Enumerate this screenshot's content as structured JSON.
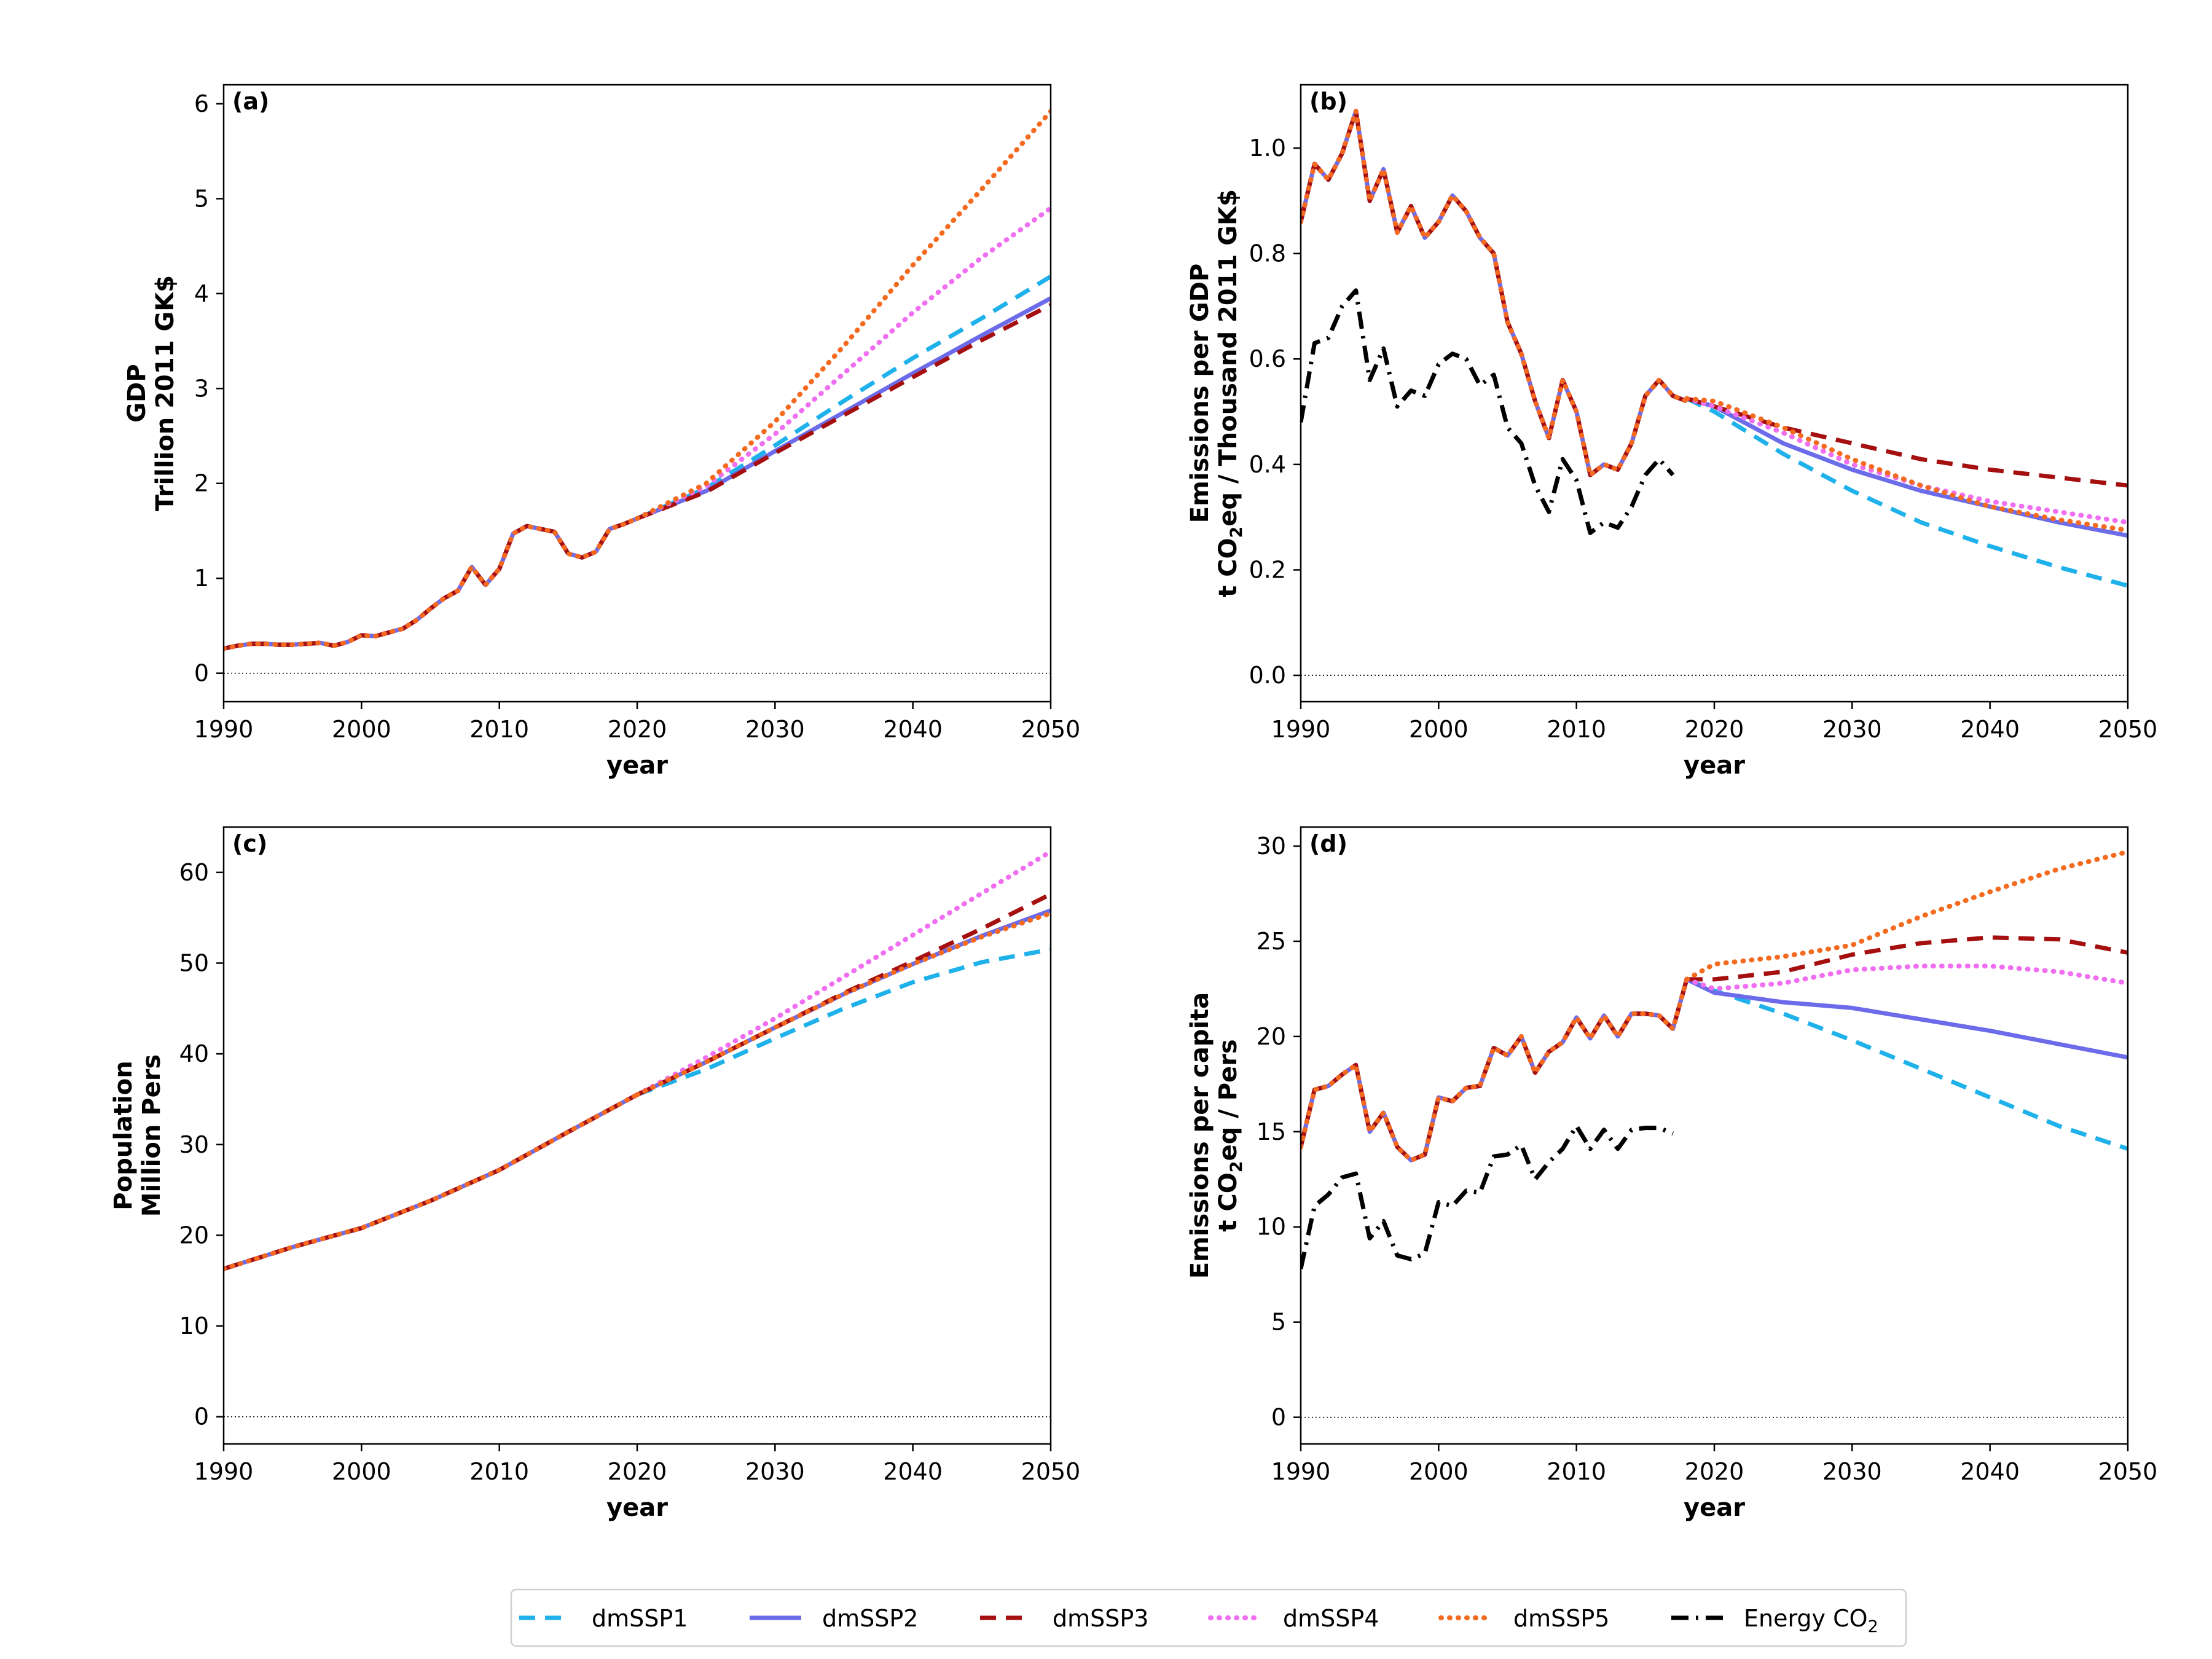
{
  "colors": {
    "dmSSP1": "#1fb1ea",
    "dmSSP2": "#6c6bea",
    "dmSSP3": "#a50f0f",
    "dmSSP4": "#f06ef0",
    "dmSSP5": "#f46a1f",
    "energy": "#000000"
  },
  "legend": {
    "items": [
      {
        "key": "dmSSP1",
        "label": "dmSSP1",
        "style": "dashed"
      },
      {
        "key": "dmSSP2",
        "label": "dmSSP2",
        "style": "solid"
      },
      {
        "key": "dmSSP3",
        "label": "dmSSP3",
        "style": "dashed"
      },
      {
        "key": "dmSSP4",
        "label": "dmSSP4",
        "style": "dotted"
      },
      {
        "key": "dmSSP5",
        "label": "dmSSP5",
        "style": "dotted"
      },
      {
        "key": "energy",
        "label": "Energy CO",
        "sub": "2",
        "style": "dashdot"
      }
    ],
    "placement": "bottom-center"
  },
  "chart_data": [
    {
      "panel_label": "(a)",
      "type": "line",
      "ylabel_lines": [
        {
          "text": "GDP"
        },
        {
          "text": "Trillion 2011 GK$"
        }
      ],
      "xlabel": "year",
      "xlim": [
        1990,
        2050
      ],
      "ylim": [
        -0.3,
        6.2
      ],
      "xticks": [
        1990,
        2000,
        2010,
        2020,
        2030,
        2040,
        2050
      ],
      "yticks": [
        0,
        1,
        2,
        3,
        4,
        5,
        6
      ],
      "zero_line": true,
      "historical": {
        "x": [
          1990,
          1991,
          1992,
          1993,
          1994,
          1995,
          1996,
          1997,
          1998,
          1999,
          2000,
          2001,
          2002,
          2003,
          2004,
          2005,
          2006,
          2007,
          2008,
          2009,
          2010,
          2011,
          2012,
          2013,
          2014,
          2015,
          2016,
          2017,
          2018,
          2019,
          2020
        ],
        "y": [
          0.26,
          0.29,
          0.31,
          0.31,
          0.3,
          0.3,
          0.31,
          0.32,
          0.29,
          0.33,
          0.4,
          0.39,
          0.43,
          0.47,
          0.56,
          0.68,
          0.79,
          0.87,
          1.12,
          0.93,
          1.1,
          1.47,
          1.55,
          1.52,
          1.49,
          1.26,
          1.22,
          1.28,
          1.52,
          1.57,
          1.63
        ]
      },
      "scenarios": [
        {
          "key": "dmSSP1",
          "x": [
            2020,
            2025,
            2030,
            2035,
            2040,
            2045,
            2050
          ],
          "y": [
            1.63,
            1.95,
            2.4,
            2.87,
            3.32,
            3.74,
            4.18
          ]
        },
        {
          "key": "dmSSP2",
          "x": [
            2020,
            2025,
            2030,
            2035,
            2040,
            2045,
            2050
          ],
          "y": [
            1.63,
            1.92,
            2.34,
            2.75,
            3.16,
            3.56,
            3.95
          ]
        },
        {
          "key": "dmSSP3",
          "x": [
            2020,
            2025,
            2030,
            2035,
            2040,
            2045,
            2050
          ],
          "y": [
            1.63,
            1.91,
            2.32,
            2.72,
            3.12,
            3.51,
            3.88
          ]
        },
        {
          "key": "dmSSP4",
          "x": [
            2020,
            2025,
            2030,
            2035,
            2040,
            2045,
            2050
          ],
          "y": [
            1.63,
            1.97,
            2.52,
            3.16,
            3.8,
            4.38,
            4.9
          ]
        },
        {
          "key": "dmSSP5",
          "x": [
            2020,
            2025,
            2030,
            2035,
            2040,
            2045,
            2050
          ],
          "y": [
            1.63,
            2.0,
            2.65,
            3.45,
            4.3,
            5.1,
            5.92
          ]
        }
      ]
    },
    {
      "panel_label": "(b)",
      "type": "line",
      "ylabel_lines": [
        {
          "text": "Emissions per GDP"
        },
        {
          "text": "t CO",
          "sub": "2",
          "after": "eq / Thousand 2011 GK$"
        }
      ],
      "xlabel": "year",
      "xlim": [
        1990,
        2050
      ],
      "ylim": [
        -0.05,
        1.12
      ],
      "xticks": [
        1990,
        2000,
        2010,
        2020,
        2030,
        2040,
        2050
      ],
      "yticks": [
        0.0,
        0.2,
        0.4,
        0.6,
        0.8,
        1.0
      ],
      "tick_format": 1,
      "zero_line": true,
      "historical": {
        "x": [
          1990,
          1991,
          1992,
          1993,
          1994,
          1995,
          1996,
          1997,
          1998,
          1999,
          2000,
          2001,
          2002,
          2003,
          2004,
          2005,
          2006,
          2007,
          2008,
          2009,
          2010,
          2011,
          2012,
          2013,
          2014,
          2015,
          2016,
          2017,
          2018
        ],
        "y": [
          0.86,
          0.97,
          0.94,
          0.99,
          1.07,
          0.9,
          0.96,
          0.84,
          0.89,
          0.83,
          0.86,
          0.91,
          0.88,
          0.83,
          0.8,
          0.67,
          0.61,
          0.52,
          0.45,
          0.56,
          0.5,
          0.38,
          0.4,
          0.39,
          0.44,
          0.53,
          0.56,
          0.53,
          0.52
        ]
      },
      "energy": {
        "x": [
          1990,
          1991,
          1992,
          1993,
          1994,
          1995,
          1996,
          1997,
          1998,
          1999,
          2000,
          2001,
          2002,
          2003,
          2004,
          2005,
          2006,
          2007,
          2008,
          2009,
          2010,
          2011,
          2012,
          2013,
          2014,
          2015,
          2016,
          2017
        ],
        "y": [
          0.48,
          0.63,
          0.64,
          0.7,
          0.73,
          0.56,
          0.62,
          0.51,
          0.54,
          0.53,
          0.59,
          0.61,
          0.6,
          0.55,
          0.57,
          0.47,
          0.44,
          0.36,
          0.31,
          0.41,
          0.37,
          0.27,
          0.29,
          0.28,
          0.32,
          0.38,
          0.41,
          0.38
        ]
      },
      "scenarios": [
        {
          "key": "dmSSP1",
          "x": [
            2018,
            2020,
            2025,
            2030,
            2035,
            2040,
            2045,
            2050
          ],
          "y": [
            0.525,
            0.5,
            0.42,
            0.35,
            0.29,
            0.245,
            0.205,
            0.17
          ]
        },
        {
          "key": "dmSSP2",
          "x": [
            2018,
            2020,
            2025,
            2030,
            2035,
            2040,
            2045,
            2050
          ],
          "y": [
            0.525,
            0.51,
            0.44,
            0.39,
            0.35,
            0.32,
            0.29,
            0.265
          ]
        },
        {
          "key": "dmSSP3",
          "x": [
            2018,
            2020,
            2025,
            2030,
            2035,
            2040,
            2045,
            2050
          ],
          "y": [
            0.525,
            0.51,
            0.47,
            0.44,
            0.41,
            0.39,
            0.375,
            0.36
          ]
        },
        {
          "key": "dmSSP4",
          "x": [
            2018,
            2020,
            2025,
            2030,
            2035,
            2040,
            2045,
            2050
          ],
          "y": [
            0.525,
            0.51,
            0.46,
            0.4,
            0.36,
            0.33,
            0.31,
            0.29
          ]
        },
        {
          "key": "dmSSP5",
          "x": [
            2018,
            2020,
            2025,
            2030,
            2035,
            2040,
            2045,
            2050
          ],
          "y": [
            0.525,
            0.52,
            0.47,
            0.41,
            0.36,
            0.32,
            0.295,
            0.275
          ]
        }
      ]
    },
    {
      "panel_label": "(c)",
      "type": "line",
      "ylabel_lines": [
        {
          "text": "Population"
        },
        {
          "text": "Million Pers"
        }
      ],
      "xlabel": "year",
      "xlim": [
        1990,
        2050
      ],
      "ylim": [
        -3,
        65
      ],
      "xticks": [
        1990,
        2000,
        2010,
        2020,
        2030,
        2040,
        2050
      ],
      "yticks": [
        0,
        10,
        20,
        30,
        40,
        50,
        60
      ],
      "zero_line": true,
      "historical": {
        "x": [
          1990,
          1995,
          2000,
          2005,
          2010,
          2015,
          2020
        ],
        "y": [
          16.3,
          18.7,
          20.8,
          23.8,
          27.2,
          31.4,
          35.5
        ]
      },
      "scenarios": [
        {
          "key": "dmSSP1",
          "x": [
            2020,
            2025,
            2030,
            2035,
            2040,
            2045,
            2050
          ],
          "y": [
            35.5,
            38.3,
            41.7,
            45.0,
            47.9,
            50.1,
            51.5
          ]
        },
        {
          "key": "dmSSP2",
          "x": [
            2020,
            2025,
            2030,
            2035,
            2040,
            2045,
            2050
          ],
          "y": [
            35.5,
            39.1,
            42.9,
            46.6,
            49.9,
            53.0,
            55.8
          ]
        },
        {
          "key": "dmSSP3",
          "x": [
            2020,
            2025,
            2030,
            2035,
            2040,
            2045,
            2050
          ],
          "y": [
            35.5,
            39.1,
            42.9,
            46.7,
            50.2,
            53.8,
            57.6
          ]
        },
        {
          "key": "dmSSP4",
          "x": [
            2020,
            2025,
            2030,
            2035,
            2040,
            2045,
            2050
          ],
          "y": [
            35.5,
            39.6,
            43.9,
            48.5,
            53.1,
            57.7,
            62.3
          ]
        },
        {
          "key": "dmSSP5",
          "x": [
            2020,
            2025,
            2030,
            2035,
            2040,
            2045,
            2050
          ],
          "y": [
            35.5,
            39.1,
            42.9,
            46.6,
            49.9,
            52.9,
            55.5
          ]
        }
      ]
    },
    {
      "panel_label": "(d)",
      "type": "line",
      "ylabel_lines": [
        {
          "text": "Emissions per capita"
        },
        {
          "text": "t CO",
          "sub": "2",
          "after": "eq /  Pers"
        }
      ],
      "xlabel": "year",
      "xlim": [
        1990,
        2050
      ],
      "ylim": [
        -1.4,
        31
      ],
      "xticks": [
        1990,
        2000,
        2010,
        2020,
        2030,
        2040,
        2050
      ],
      "yticks": [
        0,
        5,
        10,
        15,
        20,
        25,
        30
      ],
      "zero_line": true,
      "historical": {
        "x": [
          1990,
          1991,
          1992,
          1993,
          1994,
          1995,
          1996,
          1997,
          1998,
          1999,
          2000,
          2001,
          2002,
          2003,
          2004,
          2005,
          2006,
          2007,
          2008,
          2009,
          2010,
          2011,
          2012,
          2013,
          2014,
          2015,
          2016,
          2017,
          2018
        ],
        "y": [
          14.2,
          17.2,
          17.4,
          18.0,
          18.5,
          15.0,
          16.0,
          14.2,
          13.5,
          13.8,
          16.8,
          16.6,
          17.3,
          17.4,
          19.4,
          19.0,
          20.0,
          18.1,
          19.2,
          19.7,
          21.0,
          19.9,
          21.1,
          20.0,
          21.2,
          21.2,
          21.1,
          20.4,
          23.0
        ]
      },
      "energy": {
        "x": [
          1990,
          1991,
          1992,
          1993,
          1994,
          1995,
          1996,
          1997,
          1998,
          1999,
          2000,
          2001,
          2002,
          2003,
          2004,
          2005,
          2006,
          2007,
          2008,
          2009,
          2010,
          2011,
          2012,
          2013,
          2014,
          2015,
          2016,
          2017
        ],
        "y": [
          7.8,
          11.1,
          11.7,
          12.6,
          12.8,
          9.4,
          10.3,
          8.5,
          8.3,
          8.6,
          11.3,
          11.1,
          11.9,
          11.8,
          13.7,
          13.8,
          14.3,
          12.5,
          13.4,
          14.1,
          15.3,
          14.1,
          15.1,
          14.1,
          15.1,
          15.2,
          15.2,
          14.9
        ]
      },
      "scenarios": [
        {
          "key": "dmSSP1",
          "x": [
            2018,
            2020,
            2025,
            2030,
            2035,
            2040,
            2045,
            2050
          ],
          "y": [
            23.0,
            22.4,
            21.2,
            19.8,
            18.3,
            16.8,
            15.3,
            14.1
          ]
        },
        {
          "key": "dmSSP2",
          "x": [
            2018,
            2020,
            2025,
            2030,
            2035,
            2040,
            2045,
            2050
          ],
          "y": [
            23.0,
            22.3,
            21.8,
            21.5,
            20.9,
            20.3,
            19.6,
            18.9
          ]
        },
        {
          "key": "dmSSP3",
          "x": [
            2018,
            2020,
            2025,
            2030,
            2035,
            2040,
            2045,
            2050
          ],
          "y": [
            23.0,
            23.0,
            23.4,
            24.3,
            24.9,
            25.2,
            25.1,
            24.4
          ]
        },
        {
          "key": "dmSSP4",
          "x": [
            2018,
            2020,
            2025,
            2030,
            2035,
            2040,
            2045,
            2050
          ],
          "y": [
            23.0,
            22.5,
            22.8,
            23.5,
            23.7,
            23.7,
            23.4,
            22.8
          ]
        },
        {
          "key": "dmSSP5",
          "x": [
            2018,
            2020,
            2025,
            2030,
            2035,
            2040,
            2045,
            2050
          ],
          "y": [
            23.0,
            23.8,
            24.2,
            24.8,
            26.3,
            27.6,
            28.8,
            29.7
          ]
        }
      ]
    }
  ]
}
